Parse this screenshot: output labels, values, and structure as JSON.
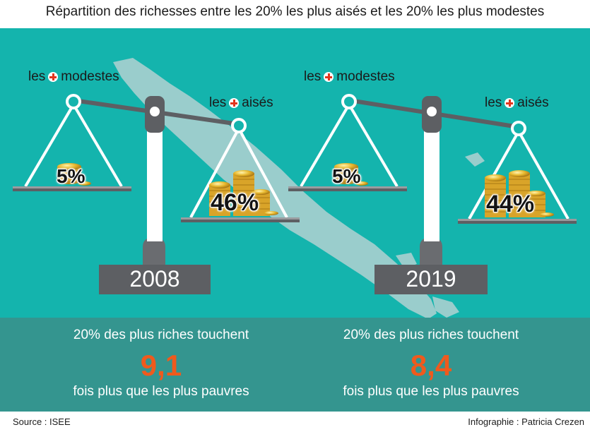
{
  "title": "Répartition des richesses entre les 20% les plus aisés et les 20% les plus modestes",
  "scales": [
    {
      "label_left_pre": "les",
      "label_left_post": "modestes",
      "label_right_pre": "les",
      "label_right_post": "aisés",
      "left_percent": "5%",
      "right_percent": "46%",
      "year": "2008"
    },
    {
      "label_left_pre": "les",
      "label_left_post": "modestes",
      "label_right_pre": "les",
      "label_right_post": "aisés",
      "left_percent": "5%",
      "right_percent": "44%",
      "year": "2019"
    }
  ],
  "stats": [
    {
      "line1": "20% des plus riches touchent",
      "value": "9,1",
      "line2": "fois plus que les plus pauvres"
    },
    {
      "line1": "20% des plus riches touchent",
      "value": "8,4",
      "line2": "fois plus que les plus pauvres"
    }
  ],
  "footer": {
    "source": "Source : ISEE",
    "credit": "Infographie : Patricia Crezen"
  },
  "colors": {
    "background": "#14b4ad",
    "band": "#34958f",
    "accent": "#ef5a1d",
    "plus": "#e3351d",
    "scale": "#5d5f63"
  }
}
